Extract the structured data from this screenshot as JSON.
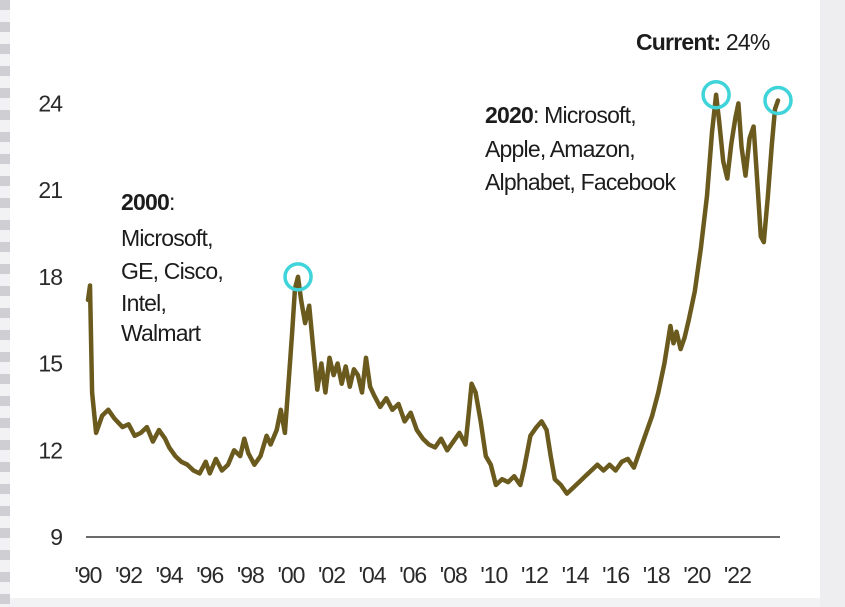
{
  "chart_data": {
    "type": "line",
    "title": "",
    "xlabel": "",
    "ylabel": "",
    "ylim": [
      9,
      25.5
    ],
    "xlim": [
      1990,
      2024
    ],
    "y_ticks": [
      9,
      12,
      15,
      18,
      21,
      24
    ],
    "x_ticks": [
      {
        "year": 1990,
        "label": "'90"
      },
      {
        "year": 1992,
        "label": "'92"
      },
      {
        "year": 1994,
        "label": "'94"
      },
      {
        "year": 1996,
        "label": "'96"
      },
      {
        "year": 1998,
        "label": "'98"
      },
      {
        "year": 2000,
        "label": "'00"
      },
      {
        "year": 2002,
        "label": "'02"
      },
      {
        "year": 2004,
        "label": "'04"
      },
      {
        "year": 2006,
        "label": "'06"
      },
      {
        "year": 2008,
        "label": "'08"
      },
      {
        "year": 2010,
        "label": "'10"
      },
      {
        "year": 2012,
        "label": "'12"
      },
      {
        "year": 2014,
        "label": "'14"
      },
      {
        "year": 2016,
        "label": "'16"
      },
      {
        "year": 2018,
        "label": "'18"
      },
      {
        "year": 2020,
        "label": "'20"
      },
      {
        "year": 2022,
        "label": "'22"
      }
    ],
    "series": [
      {
        "color": "#6b5a1e",
        "points": [
          [
            1990.0,
            17.2
          ],
          [
            1990.1,
            17.7
          ],
          [
            1990.2,
            14.0
          ],
          [
            1990.4,
            12.6
          ],
          [
            1990.7,
            13.2
          ],
          [
            1991.0,
            13.4
          ],
          [
            1991.3,
            13.1
          ],
          [
            1991.7,
            12.8
          ],
          [
            1992.0,
            12.9
          ],
          [
            1992.3,
            12.5
          ],
          [
            1992.6,
            12.6
          ],
          [
            1992.9,
            12.8
          ],
          [
            1993.2,
            12.3
          ],
          [
            1993.5,
            12.7
          ],
          [
            1993.8,
            12.4
          ],
          [
            1994.0,
            12.1
          ],
          [
            1994.3,
            11.8
          ],
          [
            1994.6,
            11.6
          ],
          [
            1994.9,
            11.5
          ],
          [
            1995.2,
            11.3
          ],
          [
            1995.5,
            11.2
          ],
          [
            1995.8,
            11.6
          ],
          [
            1996.0,
            11.2
          ],
          [
            1996.3,
            11.7
          ],
          [
            1996.6,
            11.3
          ],
          [
            1996.9,
            11.5
          ],
          [
            1997.2,
            12.0
          ],
          [
            1997.5,
            11.8
          ],
          [
            1997.7,
            12.4
          ],
          [
            1997.9,
            11.9
          ],
          [
            1998.2,
            11.5
          ],
          [
            1998.5,
            11.8
          ],
          [
            1998.8,
            12.5
          ],
          [
            1999.0,
            12.2
          ],
          [
            1999.3,
            12.7
          ],
          [
            1999.5,
            13.4
          ],
          [
            1999.7,
            12.6
          ],
          [
            1999.9,
            14.5
          ],
          [
            2000.05,
            16.0
          ],
          [
            2000.2,
            17.6
          ],
          [
            2000.35,
            18.0
          ],
          [
            2000.5,
            17.2
          ],
          [
            2000.7,
            16.4
          ],
          [
            2000.9,
            17.0
          ],
          [
            2001.1,
            15.5
          ],
          [
            2001.3,
            14.1
          ],
          [
            2001.5,
            15.0
          ],
          [
            2001.7,
            14.0
          ],
          [
            2001.9,
            15.2
          ],
          [
            2002.1,
            14.6
          ],
          [
            2002.3,
            15.0
          ],
          [
            2002.5,
            14.3
          ],
          [
            2002.7,
            14.9
          ],
          [
            2002.9,
            14.2
          ],
          [
            2003.1,
            14.8
          ],
          [
            2003.3,
            14.6
          ],
          [
            2003.5,
            14.0
          ],
          [
            2003.7,
            15.2
          ],
          [
            2003.9,
            14.2
          ],
          [
            2004.1,
            13.9
          ],
          [
            2004.4,
            13.5
          ],
          [
            2004.7,
            13.8
          ],
          [
            2005.0,
            13.4
          ],
          [
            2005.3,
            13.6
          ],
          [
            2005.6,
            13.0
          ],
          [
            2005.9,
            13.3
          ],
          [
            2006.2,
            12.7
          ],
          [
            2006.5,
            12.4
          ],
          [
            2006.8,
            12.2
          ],
          [
            2007.1,
            12.1
          ],
          [
            2007.4,
            12.4
          ],
          [
            2007.7,
            12.0
          ],
          [
            2008.0,
            12.3
          ],
          [
            2008.3,
            12.6
          ],
          [
            2008.6,
            12.2
          ],
          [
            2008.75,
            13.2
          ],
          [
            2008.9,
            14.3
          ],
          [
            2009.1,
            14.0
          ],
          [
            2009.35,
            13.0
          ],
          [
            2009.6,
            11.8
          ],
          [
            2009.85,
            11.5
          ],
          [
            2010.1,
            10.8
          ],
          [
            2010.4,
            11.0
          ],
          [
            2010.7,
            10.9
          ],
          [
            2011.0,
            11.1
          ],
          [
            2011.3,
            10.8
          ],
          [
            2011.5,
            11.4
          ],
          [
            2011.8,
            12.5
          ],
          [
            2012.1,
            12.8
          ],
          [
            2012.35,
            13.0
          ],
          [
            2012.6,
            12.7
          ],
          [
            2012.8,
            11.8
          ],
          [
            2013.0,
            11.0
          ],
          [
            2013.3,
            10.8
          ],
          [
            2013.6,
            10.5
          ],
          [
            2013.9,
            10.7
          ],
          [
            2014.2,
            10.9
          ],
          [
            2014.5,
            11.1
          ],
          [
            2014.8,
            11.3
          ],
          [
            2015.1,
            11.5
          ],
          [
            2015.4,
            11.3
          ],
          [
            2015.7,
            11.5
          ],
          [
            2016.0,
            11.3
          ],
          [
            2016.3,
            11.6
          ],
          [
            2016.6,
            11.7
          ],
          [
            2016.9,
            11.4
          ],
          [
            2017.2,
            12.0
          ],
          [
            2017.5,
            12.6
          ],
          [
            2017.8,
            13.2
          ],
          [
            2018.1,
            14.0
          ],
          [
            2018.4,
            15.0
          ],
          [
            2018.7,
            16.3
          ],
          [
            2018.85,
            15.7
          ],
          [
            2019.0,
            16.1
          ],
          [
            2019.2,
            15.5
          ],
          [
            2019.4,
            15.9
          ],
          [
            2019.6,
            16.5
          ],
          [
            2019.9,
            17.5
          ],
          [
            2020.2,
            19.0
          ],
          [
            2020.5,
            20.8
          ],
          [
            2020.75,
            23.0
          ],
          [
            2020.95,
            24.3
          ],
          [
            2021.1,
            23.4
          ],
          [
            2021.3,
            22.0
          ],
          [
            2021.5,
            21.4
          ],
          [
            2021.7,
            22.6
          ],
          [
            2021.9,
            23.5
          ],
          [
            2022.05,
            24.0
          ],
          [
            2022.2,
            22.5
          ],
          [
            2022.4,
            21.5
          ],
          [
            2022.6,
            22.8
          ],
          [
            2022.8,
            23.2
          ],
          [
            2022.95,
            21.6
          ],
          [
            2023.15,
            19.4
          ],
          [
            2023.3,
            19.2
          ],
          [
            2023.5,
            20.8
          ],
          [
            2023.7,
            22.6
          ],
          [
            2023.85,
            23.8
          ],
          [
            2024.0,
            24.1
          ]
        ]
      }
    ],
    "highlights": [
      {
        "x": 2000.35,
        "y": 18.0
      },
      {
        "x": 2020.95,
        "y": 24.3
      },
      {
        "x": 2024.0,
        "y": 24.1
      }
    ],
    "annotations": {
      "current_label": "Current:",
      "current_value": " 24%",
      "a2020_year": "2020",
      "a2020_line1": ": Microsoft,",
      "a2020_line2": "Apple, Amazon,",
      "a2020_line3": "Alphabet, Facebook",
      "a2000_year": "2000",
      "a2000_colon": ":",
      "a2000_lines": [
        "Microsoft,",
        "GE, Cisco,",
        "Intel,",
        "Walmart"
      ]
    },
    "grid": false,
    "legend": "none"
  },
  "colors": {
    "line": "#6b5a1e",
    "highlight": "#3fd3da",
    "axis": "#6b6b6b"
  }
}
